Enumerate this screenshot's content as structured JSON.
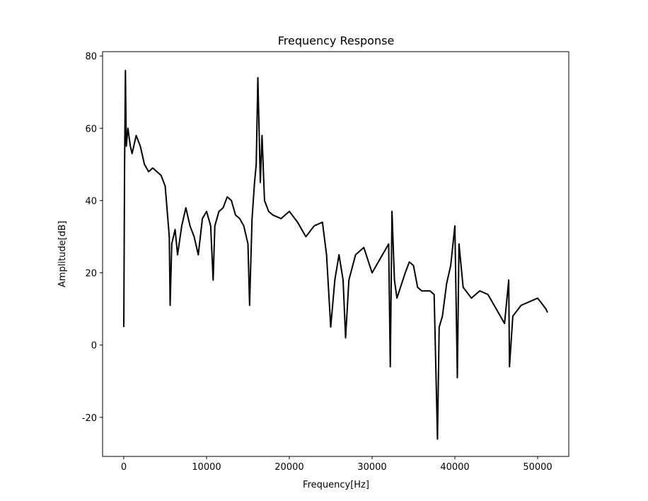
{
  "chart_data": {
    "type": "line",
    "title": "Frequency Response",
    "x_label": "Frequency[Hz]",
    "y_label": "Amplitude[dB]",
    "x": [
      0,
      100,
      200,
      300,
      500,
      800,
      1000,
      1500,
      2000,
      2500,
      3000,
      3500,
      4000,
      4500,
      5000,
      5500,
      5600,
      5800,
      6200,
      6500,
      7000,
      7500,
      8000,
      8500,
      9000,
      9500,
      10000,
      10500,
      10800,
      11000,
      11500,
      12000,
      12500,
      13000,
      13500,
      14000,
      14500,
      15000,
      15200,
      15500,
      15800,
      16000,
      16200,
      16500,
      16700,
      17000,
      17500,
      18000,
      19000,
      20000,
      21000,
      22000,
      23000,
      24000,
      24500,
      25000,
      25500,
      26000,
      26500,
      26800,
      27200,
      28000,
      29000,
      30000,
      31000,
      32000,
      32200,
      32400,
      32700,
      33000,
      34000,
      34500,
      35000,
      35500,
      36000,
      37000,
      37500,
      37900,
      38100,
      38500,
      39000,
      39500,
      40000,
      40300,
      40500,
      41000,
      42000,
      43000,
      44000,
      45000,
      46000,
      46500,
      46600,
      47000,
      48000,
      49000,
      50000,
      51000,
      51200
    ],
    "series": [
      {
        "name": "Amplitude",
        "color": "#000000",
        "values": [
          5,
          50,
          76,
          55,
          60,
          55,
          53,
          58,
          55,
          50,
          48,
          49,
          48,
          47,
          44,
          30,
          11,
          28,
          32,
          25,
          33,
          38,
          33,
          30,
          25,
          35,
          37,
          33,
          18,
          33,
          37,
          38,
          41,
          40,
          36,
          35,
          33,
          28,
          11,
          35,
          45,
          50,
          74,
          45,
          58,
          40,
          37,
          36,
          35,
          37,
          34,
          30,
          33,
          34,
          25,
          5,
          18,
          25,
          18,
          2,
          18,
          25,
          27,
          20,
          24,
          28,
          -6,
          37,
          18,
          13,
          20,
          23,
          22,
          16,
          15,
          15,
          14,
          -26,
          5,
          8,
          17,
          22,
          33,
          -9,
          28,
          16,
          13,
          15,
          14,
          10,
          6,
          18,
          -6,
          8,
          11,
          12,
          13,
          10,
          9
        ]
      }
    ],
    "xlim": [
      -2560,
      53760
    ],
    "ylim": [
      -30.8,
      81.2
    ],
    "xticks": [
      0,
      10000,
      20000,
      30000,
      40000,
      50000
    ],
    "yticks": [
      -20,
      0,
      20,
      40,
      60,
      80
    ],
    "grid": false
  }
}
